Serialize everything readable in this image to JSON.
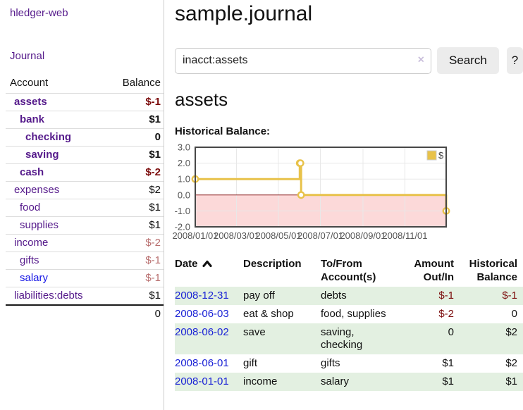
{
  "colors": {
    "accent_purple": "#551a8b",
    "link_blue": "#1717e6",
    "date_blue": "#1a22d6",
    "neg_strong": "#7b0b0b",
    "neg_soft": "#b86e6e",
    "row_green": "#e3f0e1",
    "chart_gold": "#e8c24a",
    "chart_point_fill": "#ffffff",
    "chart_neg_fill": "#fcd9d9",
    "chart_zero_line": "#8c2020",
    "chart_grid": "#e8e8e8",
    "chart_border": "#474747",
    "chart_tick_text": "#545454",
    "button_bg": "#ececec"
  },
  "app": {
    "brand": "hledger-web",
    "nav_journal": "Journal"
  },
  "sidebar": {
    "accounts_header": {
      "account": "Account",
      "balance": "Balance"
    },
    "accounts": [
      {
        "name": "assets",
        "depth": 1,
        "bold": true,
        "balance": "$-1",
        "tone": "neg-strong"
      },
      {
        "name": "bank",
        "depth": 2,
        "bold": true,
        "balance": "$1",
        "tone": "pos"
      },
      {
        "name": "checking",
        "depth": 3,
        "bold": true,
        "balance": "0",
        "tone": "pos"
      },
      {
        "name": "saving",
        "depth": 3,
        "bold": true,
        "balance": "$1",
        "tone": "pos"
      },
      {
        "name": "cash",
        "depth": 2,
        "bold": true,
        "balance": "$-2",
        "tone": "neg-strong"
      },
      {
        "name": "expenses",
        "depth": 1,
        "bold": false,
        "balance": "$2",
        "tone": "pos"
      },
      {
        "name": "food",
        "depth": 2,
        "bold": false,
        "balance": "$1",
        "tone": "pos"
      },
      {
        "name": "supplies",
        "depth": 2,
        "bold": false,
        "balance": "$1",
        "tone": "pos"
      },
      {
        "name": "income",
        "depth": 1,
        "bold": false,
        "balance": "$-2",
        "tone": "neg-soft"
      },
      {
        "name": "gifts",
        "depth": 2,
        "bold": false,
        "balance": "$-1",
        "tone": "neg-soft"
      },
      {
        "name": "salary",
        "depth": 2,
        "bold": false,
        "balance": "$-1",
        "tone": "neg-soft",
        "link": "blue"
      },
      {
        "name": "liabilities:debts",
        "depth": 1,
        "bold": false,
        "balance": "$1",
        "tone": "pos"
      }
    ],
    "total": "0"
  },
  "header": {
    "title": "sample.journal"
  },
  "search": {
    "value": "inacct:assets",
    "clear_icon": "×",
    "button": "Search",
    "help_button": "?"
  },
  "account_page": {
    "title": "assets",
    "chart_label": "Historical Balance:"
  },
  "chart_data": {
    "type": "line",
    "line_style": "step",
    "title": "Historical Balance:",
    "series": [
      {
        "name": "$",
        "points": [
          {
            "date": "2008-01-01",
            "value": 1
          },
          {
            "date": "2008-06-01",
            "value": 2
          },
          {
            "date": "2008-06-02",
            "value": 2
          },
          {
            "date": "2008-06-03",
            "value": 0
          },
          {
            "date": "2008-12-31",
            "value": -1
          }
        ]
      }
    ],
    "x_ticks": [
      "2008/01/01",
      "2008/03/01",
      "2008/05/01",
      "2008/07/01",
      "2008/09/01",
      "2008/11/01"
    ],
    "y_ticks": [
      "3.0",
      "2.0",
      "1.0",
      "0.0",
      "-1.0",
      "-2.0"
    ],
    "xlim": [
      "2008-01-01",
      "2008-12-31"
    ],
    "ylim": [
      -2,
      3
    ],
    "grid": true,
    "legend_position": "top-right",
    "negative_region_shaded": true
  },
  "register": {
    "columns": [
      {
        "label": "Date",
        "align": "left",
        "sorted": "asc"
      },
      {
        "label": "Description",
        "align": "left"
      },
      {
        "label": "To/From Account(s)",
        "align": "left"
      },
      {
        "label": "Amount Out/In",
        "align": "right"
      },
      {
        "label": "Historical Balance",
        "align": "right"
      }
    ],
    "rows": [
      {
        "date": "2008-12-31",
        "description": "pay off",
        "accounts": "debts",
        "amount": "$-1",
        "amount_negative": true,
        "balance": "$-1",
        "balance_negative": true
      },
      {
        "date": "2008-06-03",
        "description": "eat & shop",
        "accounts": "food, supplies",
        "amount": "$-2",
        "amount_negative": true,
        "balance": "0",
        "balance_negative": false
      },
      {
        "date": "2008-06-02",
        "description": "save",
        "accounts": "saving, checking",
        "amount": "0",
        "amount_negative": false,
        "balance": "$2",
        "balance_negative": false
      },
      {
        "date": "2008-06-01",
        "description": "gift",
        "accounts": "gifts",
        "amount": "$1",
        "amount_negative": false,
        "balance": "$2",
        "balance_negative": false
      },
      {
        "date": "2008-01-01",
        "description": "income",
        "accounts": "salary",
        "amount": "$1",
        "amount_negative": false,
        "balance": "$1",
        "balance_negative": false
      }
    ]
  }
}
